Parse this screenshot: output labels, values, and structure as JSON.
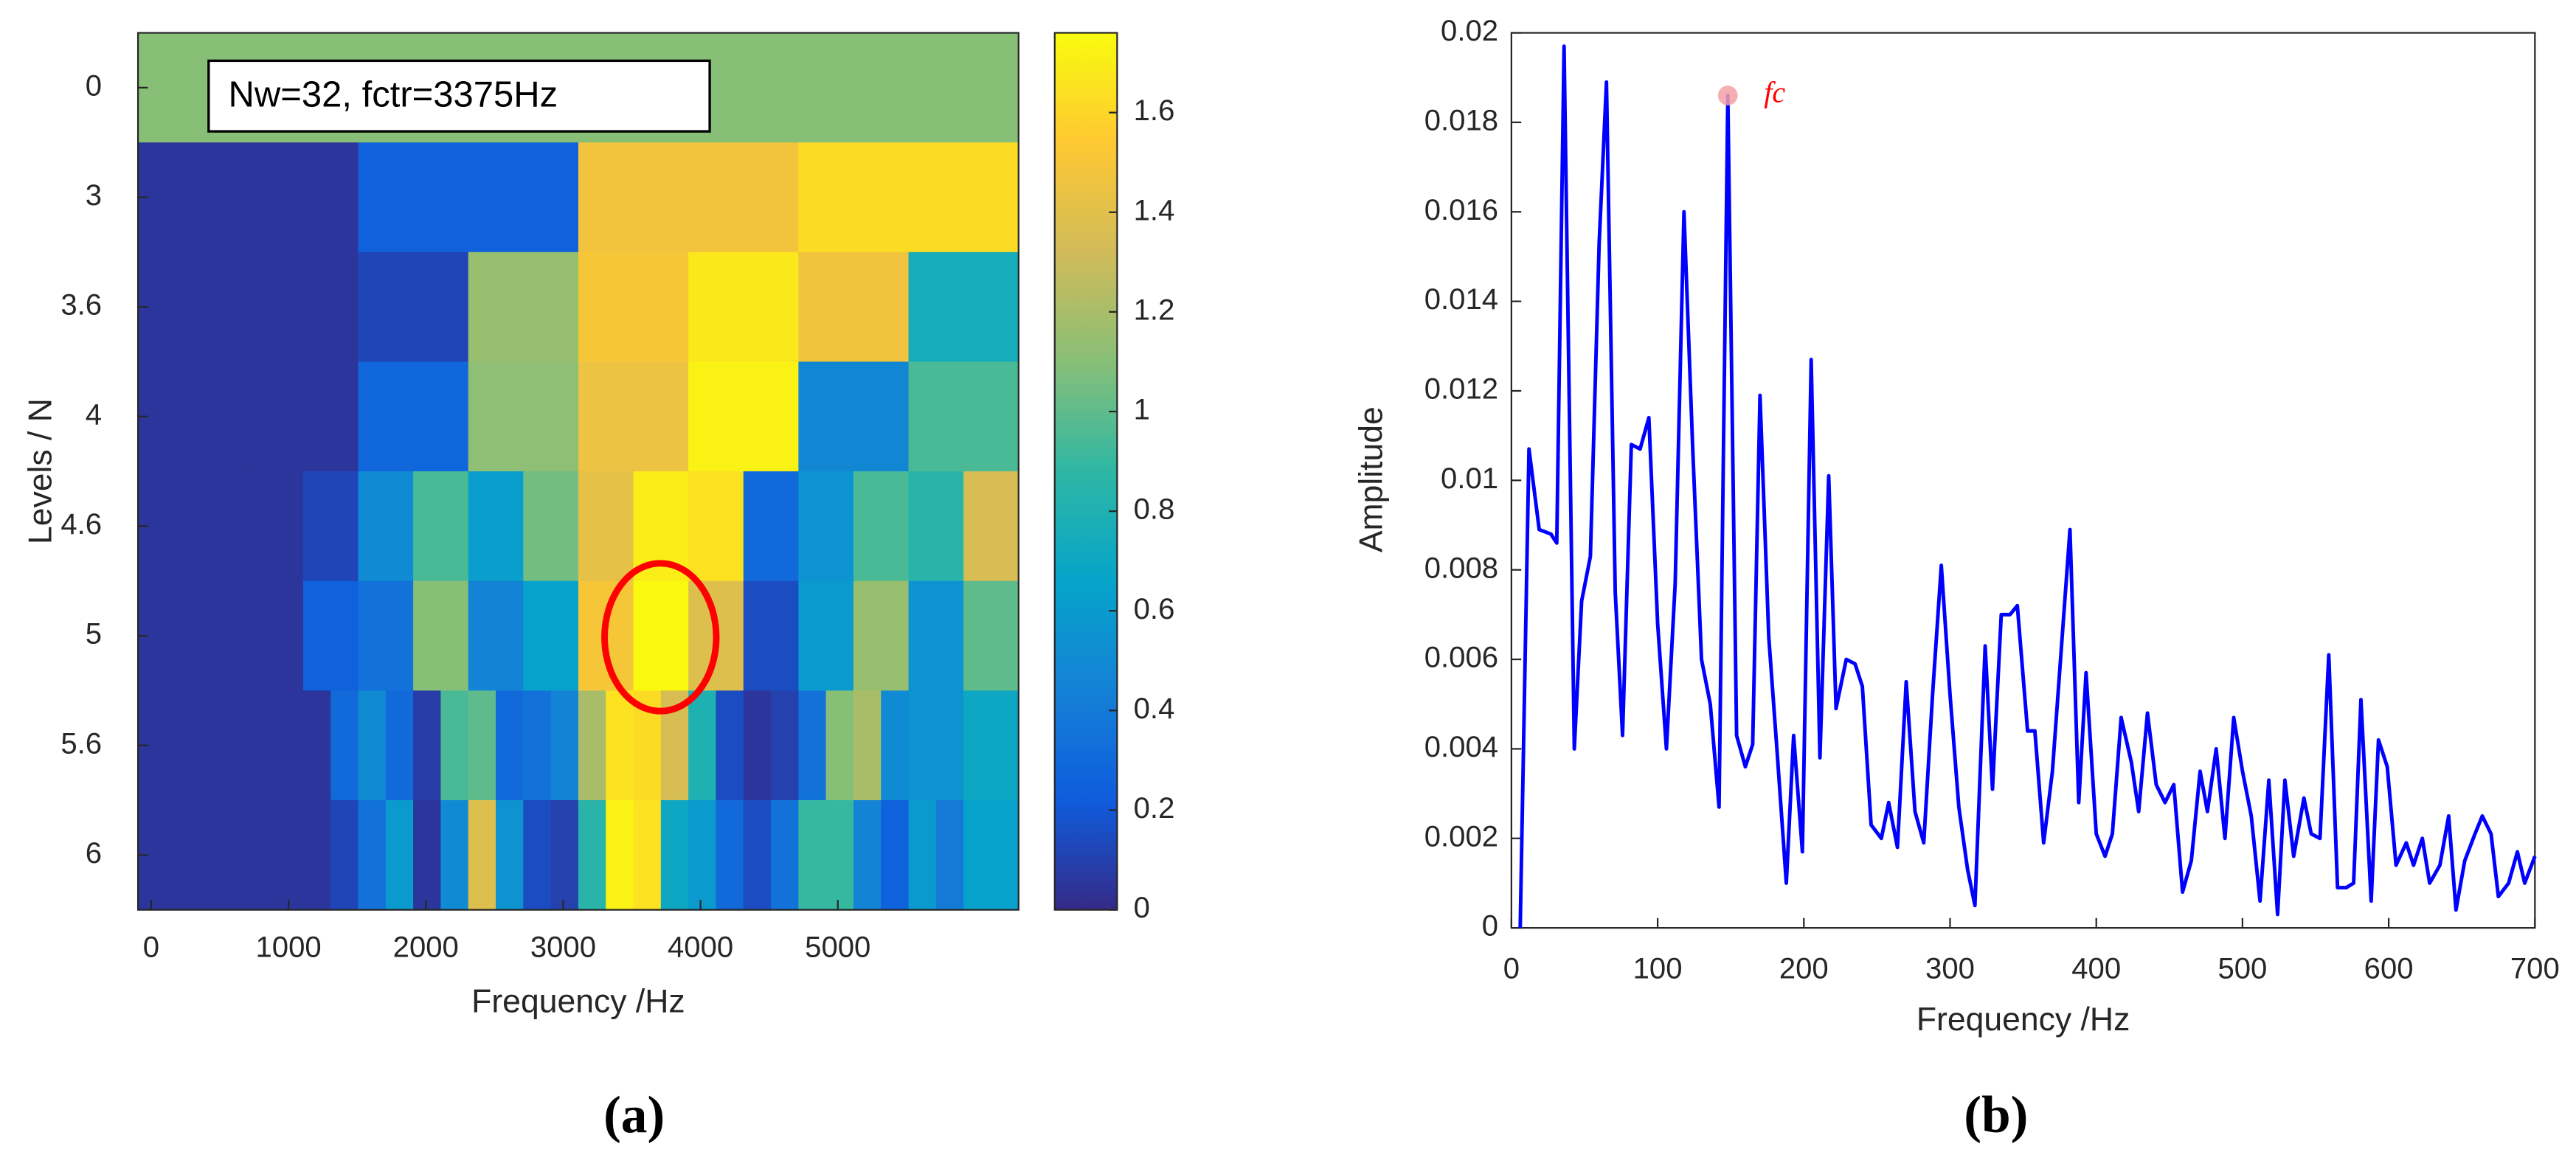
{
  "chart_data": [
    {
      "type": "heatmap",
      "panel_label": "(a)",
      "xlabel": "Frequency /Hz",
      "ylabel": "Levels / N",
      "annotation": "Nw=32, fctr=3375Hz",
      "colormap": "parula",
      "categories": [
        "0",
        "3",
        "3.6",
        "4",
        "4.6",
        "5",
        "5.6",
        "6"
      ],
      "xlim": [
        -96,
        6316
      ],
      "xticks": [
        0,
        1000,
        2000,
        3000,
        4000,
        5000
      ],
      "clim": [
        0,
        1.76
      ],
      "cticks": [
        0,
        0.2,
        0.4,
        0.6,
        0.8,
        1,
        1.2,
        1.4,
        1.6
      ],
      "values": [
        [
          1.1
        ],
        [
          0.05,
          0.25,
          1.48,
          1.62
        ],
        [
          0.05,
          0.05,
          0.12,
          1.15,
          1.5,
          1.68,
          1.47,
          0.75
        ],
        [
          0.05,
          0.05,
          0.28,
          1.12,
          1.45,
          1.72,
          0.48,
          0.95
        ],
        [
          0.05,
          0.05,
          0.05,
          0.12,
          0.5,
          0.95,
          0.62,
          1.05,
          1.42,
          1.7,
          1.65,
          0.3,
          0.55,
          0.95,
          0.85,
          1.35
        ],
        [
          0.05,
          0.05,
          0.05,
          0.25,
          0.35,
          1.1,
          0.45,
          0.65,
          1.5,
          1.75,
          1.38,
          0.15,
          0.6,
          1.15,
          0.55,
          1.0
        ],
        [
          0.05,
          0.05,
          0.05,
          0.05,
          0.05,
          0.05,
          0.05,
          0.3,
          0.5,
          0.3,
          0.08,
          0.95,
          1.0,
          0.3,
          0.35,
          0.45,
          1.2,
          1.65,
          1.62,
          1.35,
          0.8,
          0.15,
          0.05,
          0.1,
          0.35,
          1.1,
          1.2,
          0.5,
          0.55,
          0.55,
          0.7,
          0.7
        ],
        [
          0.05,
          0.05,
          0.05,
          0.05,
          0.05,
          0.05,
          0.05,
          0.12,
          0.35,
          0.6,
          0.05,
          0.5,
          1.38,
          0.55,
          0.15,
          0.1,
          0.85,
          1.72,
          1.65,
          0.7,
          0.6,
          0.3,
          0.15,
          0.35,
          0.9,
          0.9,
          0.45,
          0.25,
          0.6,
          0.4,
          0.65,
          0.65
        ]
      ]
    },
    {
      "type": "line",
      "panel_label": "(b)",
      "xlabel": "Frequency /Hz",
      "ylabel": "Amplitude",
      "xlim": [
        0,
        700
      ],
      "xticks": [
        0,
        100,
        200,
        300,
        400,
        500,
        600,
        700
      ],
      "ylim": [
        0,
        0.02
      ],
      "yticks": [
        0,
        0.002,
        0.004,
        0.006,
        0.008,
        0.01,
        0.012,
        0.014,
        0.016,
        0.018,
        0.02
      ],
      "annotation": {
        "text": "fc",
        "x": 148,
        "y": 0.0186,
        "color": "#ff0000",
        "marker_color": "#f4a0a8"
      },
      "x": [
        6,
        12,
        19,
        27,
        31,
        36,
        43,
        48,
        54,
        60,
        65,
        71,
        76,
        82,
        88,
        94,
        100,
        106,
        112,
        118,
        124,
        130,
        136,
        142,
        148,
        154,
        160,
        165,
        170,
        176,
        182,
        188,
        193,
        199,
        205,
        211,
        217,
        222,
        229,
        235,
        240,
        246,
        253,
        258,
        264,
        270,
        276,
        282,
        288,
        294,
        300,
        306,
        312,
        317,
        324,
        329,
        335,
        341,
        346,
        353,
        358,
        364,
        370,
        376,
        382,
        388,
        393,
        400,
        406,
        411,
        417,
        424,
        429,
        435,
        441,
        447,
        453,
        459,
        465,
        471,
        476,
        482,
        488,
        494,
        500,
        506,
        512,
        518,
        524,
        529,
        535,
        542,
        547,
        553,
        559,
        565,
        571,
        576,
        581,
        588,
        593,
        599,
        605,
        612,
        617,
        623,
        628,
        635,
        641,
        646,
        652,
        659,
        664,
        670,
        675,
        682,
        688,
        693,
        700
      ],
      "series": [
        {
          "color": "#0000ff",
          "values": [
            0,
            0.0107,
            0.0089,
            0.0088,
            0.0086,
            0.0197,
            0.004,
            0.0073,
            0.0083,
            0.0153,
            0.0189,
            0.0075,
            0.0043,
            0.0108,
            0.0107,
            0.0114,
            0.0068,
            0.004,
            0.0077,
            0.016,
            0.0107,
            0.006,
            0.005,
            0.0027,
            0.0186,
            0.0043,
            0.0036,
            0.0041,
            0.0119,
            0.0065,
            0.0038,
            0.001,
            0.0043,
            0.0017,
            0.0127,
            0.0038,
            0.0101,
            0.0049,
            0.006,
            0.0059,
            0.0054,
            0.0023,
            0.002,
            0.0028,
            0.0018,
            0.0055,
            0.0026,
            0.0019,
            0.0052,
            0.0081,
            0.0052,
            0.0027,
            0.0013,
            0.0005,
            0.0063,
            0.0031,
            0.007,
            0.007,
            0.0072,
            0.0044,
            0.0044,
            0.0019,
            0.0035,
            0.0062,
            0.0089,
            0.0028,
            0.0057,
            0.0021,
            0.0016,
            0.0021,
            0.0047,
            0.0037,
            0.0026,
            0.0048,
            0.0032,
            0.0028,
            0.0032,
            0.0008,
            0.0015,
            0.0035,
            0.0026,
            0.004,
            0.002,
            0.0047,
            0.0035,
            0.0025,
            0.0006,
            0.0033,
            0.0003,
            0.0033,
            0.0016,
            0.0029,
            0.0021,
            0.002,
            0.0061,
            0.0009,
            0.0009,
            0.001,
            0.0051,
            0.0006,
            0.0042,
            0.0036,
            0.0014,
            0.0019,
            0.0014,
            0.002,
            0.001,
            0.0014,
            0.0025,
            0.0004,
            0.0015,
            0.0021,
            0.0025,
            0.0021,
            0.0007,
            0.001,
            0.0017,
            0.001,
            0.0016
          ]
        }
      ]
    }
  ]
}
